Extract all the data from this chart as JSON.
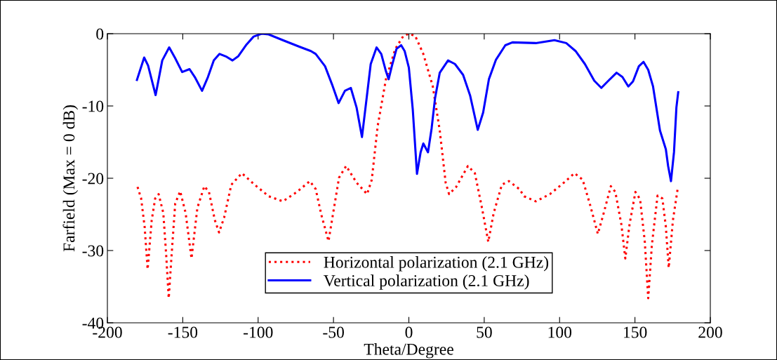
{
  "chart_data": {
    "type": "line",
    "xlabel": "Theta/Degree",
    "ylabel": "Farfield (Max = 0 dB)",
    "xlim": [
      -200,
      200
    ],
    "ylim": [
      -40,
      0
    ],
    "xticks": [
      -200,
      -150,
      -100,
      -50,
      0,
      50,
      100,
      150,
      200
    ],
    "yticks": [
      -40,
      -30,
      -20,
      -10,
      0
    ],
    "grid": false,
    "legend": "bottom",
    "marker": "none",
    "series": [
      {
        "name": "Horizontal polarization (2.1 GHz)",
        "color": "#ff0000",
        "line_style": "dotted",
        "x": [
          -180,
          -177.6,
          -175.3,
          -173.3,
          -170.6,
          -168.3,
          -166,
          -162.9,
          -161,
          -159.3,
          -157.4,
          -155,
          -151.7,
          -148.1,
          -144.2,
          -140.3,
          -135.7,
          -132.6,
          -128.7,
          -125.9,
          -122.5,
          -117.8,
          -110.8,
          -102.3,
          -92.9,
          -83.6,
          -74.3,
          -65.7,
          -61.8,
          -58,
          -53.3,
          -50.2,
          -46.3,
          -41.6,
          -34.7,
          -27.7,
          -24.6,
          -20.7,
          -15.2,
          -9,
          -3.6,
          0,
          4.2,
          9.6,
          15.9,
          20.5,
          24.4,
          26.7,
          31.4,
          39.2,
          43.8,
          48.5,
          52.7,
          56.3,
          61.7,
          66.4,
          73.3,
          76.5,
          84.2,
          93.6,
          102.9,
          109.9,
          115.3,
          120,
          125.4,
          129.3,
          134,
          137,
          141,
          143.6,
          146.4,
          150.3,
          153.4,
          156.5,
          158.8,
          161.2,
          165,
          168.2,
          170.5,
          172.4,
          175.2,
          178.3
        ],
        "values": [
          -21.2,
          -22.8,
          -26.7,
          -32.6,
          -25.8,
          -22.8,
          -22.2,
          -24.8,
          -30.6,
          -36.6,
          -30.6,
          -23.5,
          -21.8,
          -24.8,
          -31.1,
          -24.1,
          -21.1,
          -21.9,
          -25.8,
          -27.5,
          -25.4,
          -20.9,
          -19.3,
          -20.9,
          -22.5,
          -23.2,
          -21.9,
          -20.4,
          -21.5,
          -25.1,
          -28.7,
          -24.8,
          -19.9,
          -18.3,
          -20.6,
          -22.2,
          -20.2,
          -12.8,
          -6.3,
          -2.1,
          -0.3,
          0,
          -0.3,
          -2.8,
          -7.3,
          -13.4,
          -20.6,
          -22.2,
          -21.2,
          -18.3,
          -19.3,
          -24.1,
          -28.8,
          -24.8,
          -20.9,
          -20.4,
          -21.5,
          -22.5,
          -23.2,
          -22.2,
          -20.6,
          -19.3,
          -20.2,
          -23.5,
          -27.7,
          -24.8,
          -21.1,
          -21.9,
          -26.4,
          -31.1,
          -26.4,
          -21.9,
          -22.9,
          -28.7,
          -36.6,
          -29.3,
          -22.4,
          -22.8,
          -26.7,
          -32.4,
          -25.8,
          -21.5
        ]
      },
      {
        "name": "Vertical polarization (2.1 GHz)",
        "color": "#0000ff",
        "line_style": "solid",
        "x": [
          -180.4,
          -175.6,
          -173,
          -168,
          -163.6,
          -159,
          -155,
          -150.4,
          -145.5,
          -142,
          -137.2,
          -133.3,
          -129.4,
          -125.6,
          -120.9,
          -117,
          -113.1,
          -107.7,
          -103,
          -97.6,
          -93,
          -83.6,
          -72.7,
          -65,
          -61.8,
          -55.6,
          -51,
          -46.6,
          -42.4,
          -38.5,
          -34.7,
          -31.1,
          -28.4,
          -25.3,
          -21.4,
          -18.3,
          -15.2,
          -13.4,
          -11.3,
          -8.2,
          -5.1,
          -2.8,
          0,
          2.6,
          5.4,
          7.8,
          9.6,
          12.7,
          15.1,
          17.4,
          20.5,
          26,
          30.6,
          36,
          40.7,
          45.7,
          49.3,
          53.1,
          57.8,
          64,
          68.7,
          84.2,
          96.6,
          104.4,
          110.6,
          116.8,
          123,
          127.7,
          132.4,
          137.8,
          141.7,
          145.6,
          148.7,
          152.6,
          155.7,
          158.8,
          162,
          166.6,
          170.5,
          172,
          173.9,
          175.9,
          177.5,
          178.7
        ],
        "values": [
          -6.4,
          -3.3,
          -4.4,
          -8.5,
          -3.7,
          -1.9,
          -3.4,
          -5.3,
          -4.9,
          -6,
          -7.9,
          -6,
          -3.7,
          -2.8,
          -3.2,
          -3.7,
          -3.1,
          -1.5,
          -0.4,
          0,
          -0.1,
          -0.9,
          -1.8,
          -2.4,
          -2.8,
          -4.5,
          -7,
          -9.6,
          -7.9,
          -7.5,
          -10.2,
          -14.3,
          -9.6,
          -4.2,
          -1.9,
          -2.8,
          -5.2,
          -6.3,
          -4.5,
          -2.1,
          -1.6,
          -2.4,
          -4.7,
          -10.5,
          -19.4,
          -16.4,
          -15.2,
          -16.4,
          -13.1,
          -8.9,
          -5.4,
          -3.7,
          -4.2,
          -5.7,
          -8.6,
          -13.3,
          -10.9,
          -6.3,
          -3.6,
          -1.6,
          -1.2,
          -1.3,
          -0.9,
          -1.3,
          -2.4,
          -4.2,
          -6.5,
          -7.5,
          -6.5,
          -5.4,
          -6,
          -7.3,
          -6.6,
          -4.5,
          -3.9,
          -5,
          -7.3,
          -13.4,
          -16,
          -18.3,
          -20.4,
          -16.4,
          -10.2,
          -8.1
        ]
      }
    ]
  }
}
